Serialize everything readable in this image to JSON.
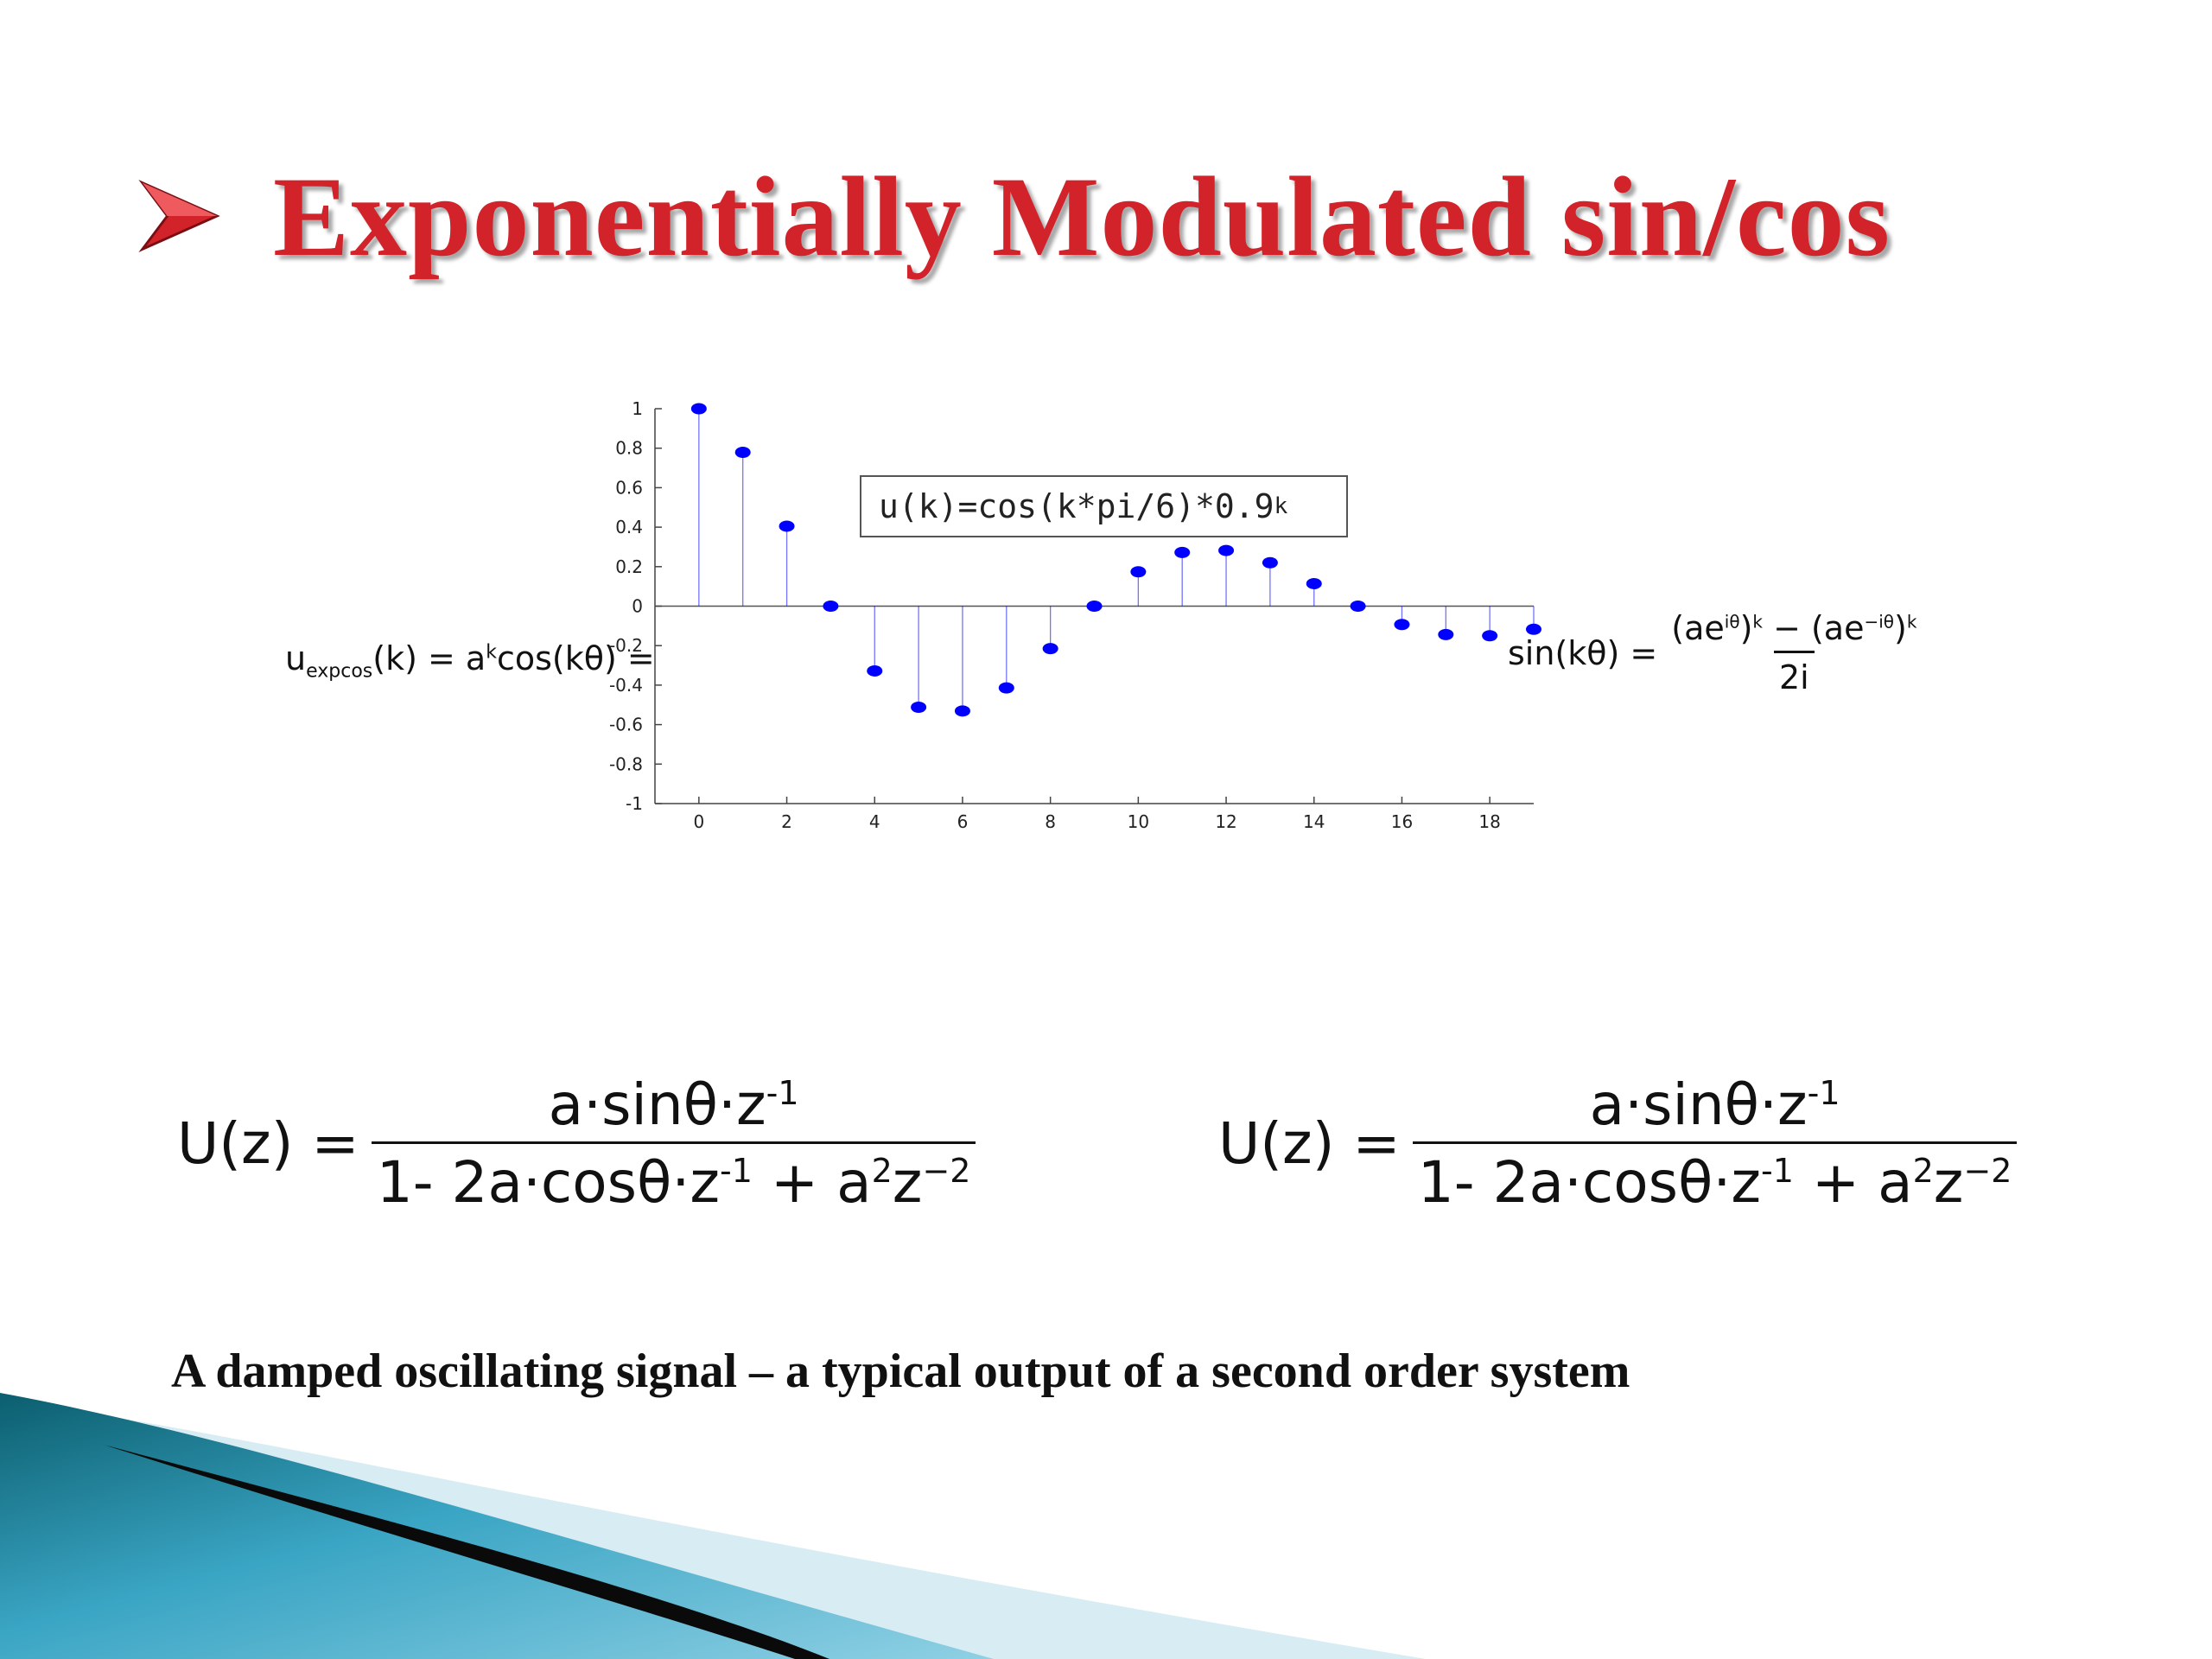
{
  "slide": {
    "title": "Exponentially Modulated sin/cos",
    "caption": "A damped oscillating signal – a typical output of a second order system",
    "colors": {
      "title": "#d2232a",
      "stem": "#0000ff",
      "accent_dark": "#0e7c8c",
      "accent_light": "#c9e4ee"
    },
    "bullet_icon": "arrow-bullet-icon"
  },
  "equations": {
    "u_expcos": "u_expcos(k) = a^k cos(kθ) =",
    "u_expcos_lhs": "u",
    "u_expcos_sub": "expcos",
    "u_expcos_rhs": "(k) = a",
    "u_expcos_sup": "k",
    "u_expcos_tail": "cos(kθ) =",
    "sin_lhs": "sin(kθ) =",
    "sin_num": "(ae^{iθ})^k − (ae^{−iθ})^k",
    "sin_num_a": "(ae",
    "sin_num_a_sup": "iθ",
    "sin_num_b": ")",
    "sin_num_b_sup": "k",
    "sin_num_c": " − (ae",
    "sin_num_c_sup": "−iθ",
    "sin_num_d": ")",
    "sin_num_d_sup": "k",
    "sin_den": "2i",
    "uz_lhs": "U(z) =",
    "uz_num": "a·sinθ·z",
    "uz_num_sup": "-1",
    "uz_den_a": "1- 2a·cosθ·z",
    "uz_den_a_sup": "-1",
    "uz_den_b": " + a",
    "uz_den_b_sup": "2",
    "uz_den_c": "z",
    "uz_den_c_sup": "−2"
  },
  "chart_data": {
    "type": "stem",
    "title": "",
    "legend": {
      "text": "u(k)=cos(k*pi/6)*0.9",
      "superscript": "k",
      "placement": "top-center"
    },
    "xlabel": "",
    "ylabel": "",
    "xlim": [
      -1,
      19
    ],
    "ylim": [
      -1,
      1
    ],
    "xticks": [
      0,
      2,
      4,
      6,
      8,
      10,
      12,
      14,
      16,
      18
    ],
    "yticks": [
      -1,
      -0.8,
      -0.6,
      -0.4,
      -0.2,
      0,
      0.2,
      0.4,
      0.6,
      0.8,
      1
    ],
    "ytick_labels": [
      "-1",
      "-0.8",
      "-0.6",
      "-0.4",
      "-0.2",
      "0",
      "0.2",
      "0.4",
      "0.6",
      "0.8",
      "1"
    ],
    "grid": false,
    "series": [
      {
        "name": "u(k)=cos(k*pi/6)*0.9^k",
        "x": [
          0,
          1,
          2,
          3,
          4,
          5,
          6,
          7,
          8,
          9,
          10,
          11,
          12,
          13,
          14,
          15,
          16,
          17,
          18,
          19
        ],
        "values": [
          1.0,
          0.779,
          0.405,
          0.0,
          -0.328,
          -0.512,
          -0.531,
          -0.414,
          -0.215,
          0.0,
          0.174,
          0.272,
          0.282,
          0.22,
          0.114,
          0.0,
          -0.093,
          -0.144,
          -0.15,
          -0.117
        ]
      }
    ]
  }
}
